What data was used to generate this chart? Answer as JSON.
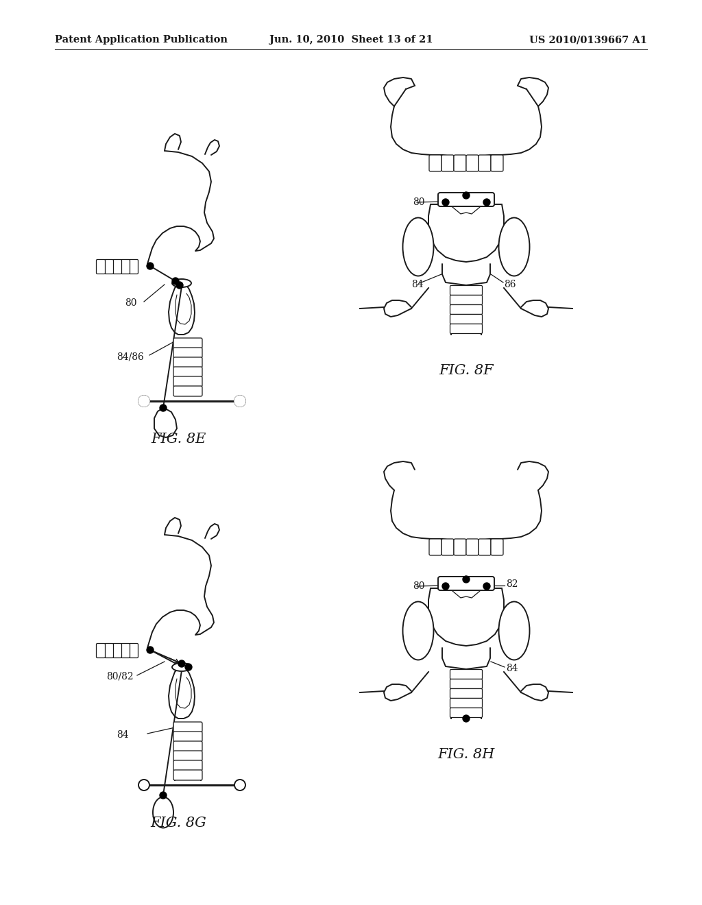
{
  "background_color": "#ffffff",
  "header_left": "Patent Application Publication",
  "header_mid": "Jun. 10, 2010  Sheet 13 of 21",
  "header_right": "US 2010/0139667 A1",
  "line_color": "#1a1a1a",
  "text_color": "#1a1a1a",
  "font_size_header": 10.5,
  "font_size_label": 14,
  "font_size_ref": 9
}
